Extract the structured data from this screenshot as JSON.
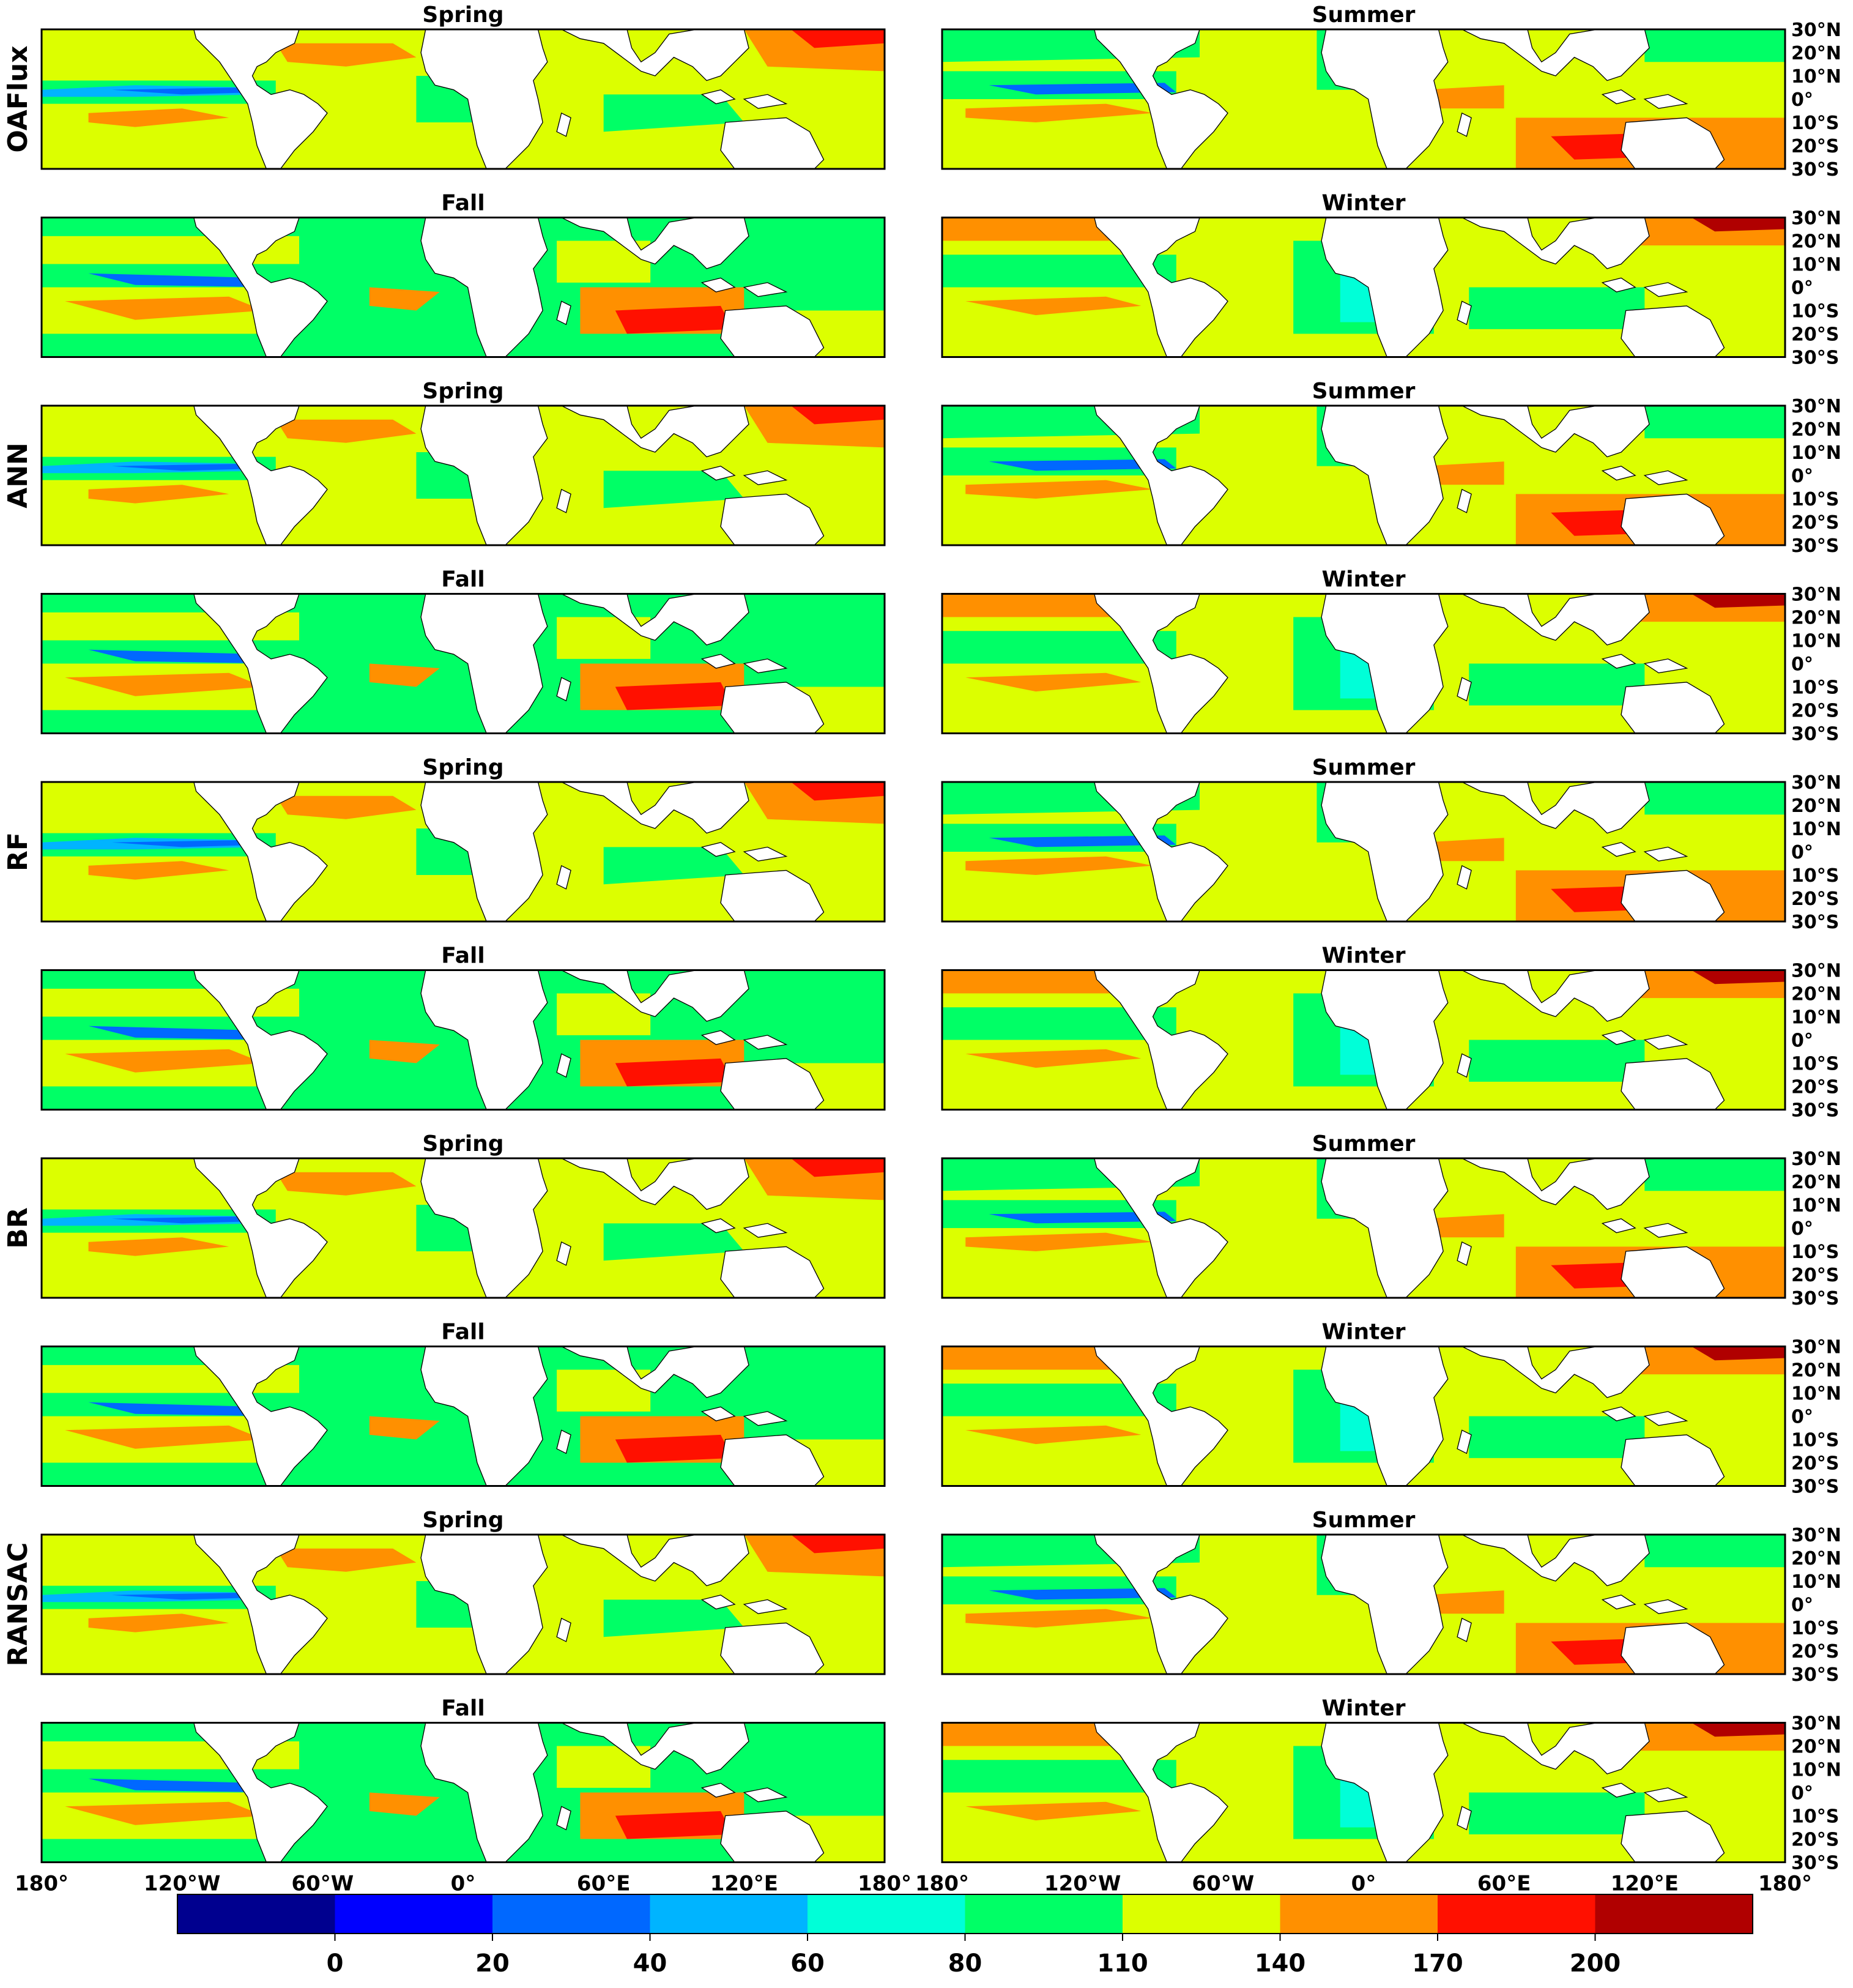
{
  "rows": [
    {
      "name": "OAFlux",
      "seasons": [
        "Spring",
        "Summer"
      ]
    },
    {
      "name": "",
      "seasons": [
        "Fall",
        "Winter"
      ]
    },
    {
      "name": "ANN",
      "seasons": [
        "Spring",
        "Summer"
      ]
    },
    {
      "name": "",
      "seasons": [
        "Fall",
        "Winter"
      ]
    },
    {
      "name": "RF",
      "seasons": [
        "Spring",
        "Summer"
      ]
    },
    {
      "name": "",
      "seasons": [
        "Fall",
        "Winter"
      ]
    },
    {
      "name": "BR",
      "seasons": [
        "Spring",
        "Summer"
      ]
    },
    {
      "name": "",
      "seasons": [
        "Fall",
        "Winter"
      ]
    },
    {
      "name": "RANSAC",
      "seasons": [
        "Spring",
        "Summer"
      ]
    },
    {
      "name": "",
      "seasons": [
        "Fall",
        "Winter"
      ]
    }
  ],
  "lat_ticks": [
    "30°N",
    "20°N",
    "10°N",
    "0°",
    "10°S",
    "20°S",
    "30°S"
  ],
  "lon_ticks_left": [
    "180°",
    "120°W",
    "60°W",
    "0°",
    "60°E",
    "120°E",
    "180°"
  ],
  "lon_ticks_right": [
    "180°",
    "120°W",
    "60°W",
    "0°",
    "60°E",
    "120°E",
    "180°"
  ],
  "colorbar": {
    "tick_labels": [
      "0",
      "20",
      "40",
      "60",
      "80",
      "110",
      "140",
      "170",
      "200"
    ],
    "colors": [
      "#00008f",
      "#0000ff",
      "#0068ff",
      "#00b4ff",
      "#00ffd8",
      "#00ff66",
      "#dcff00",
      "#ff9000",
      "#ff1000",
      "#b00000"
    ]
  },
  "colors": {
    "land": "#ffffff",
    "coast": "#000000",
    "low": "#0000ff",
    "cyan": "#00ffd8",
    "green": "#00ff66",
    "yellow": "#dcff00",
    "orange": "#ff9000",
    "red": "#ff1000",
    "darkred": "#b00000"
  }
}
